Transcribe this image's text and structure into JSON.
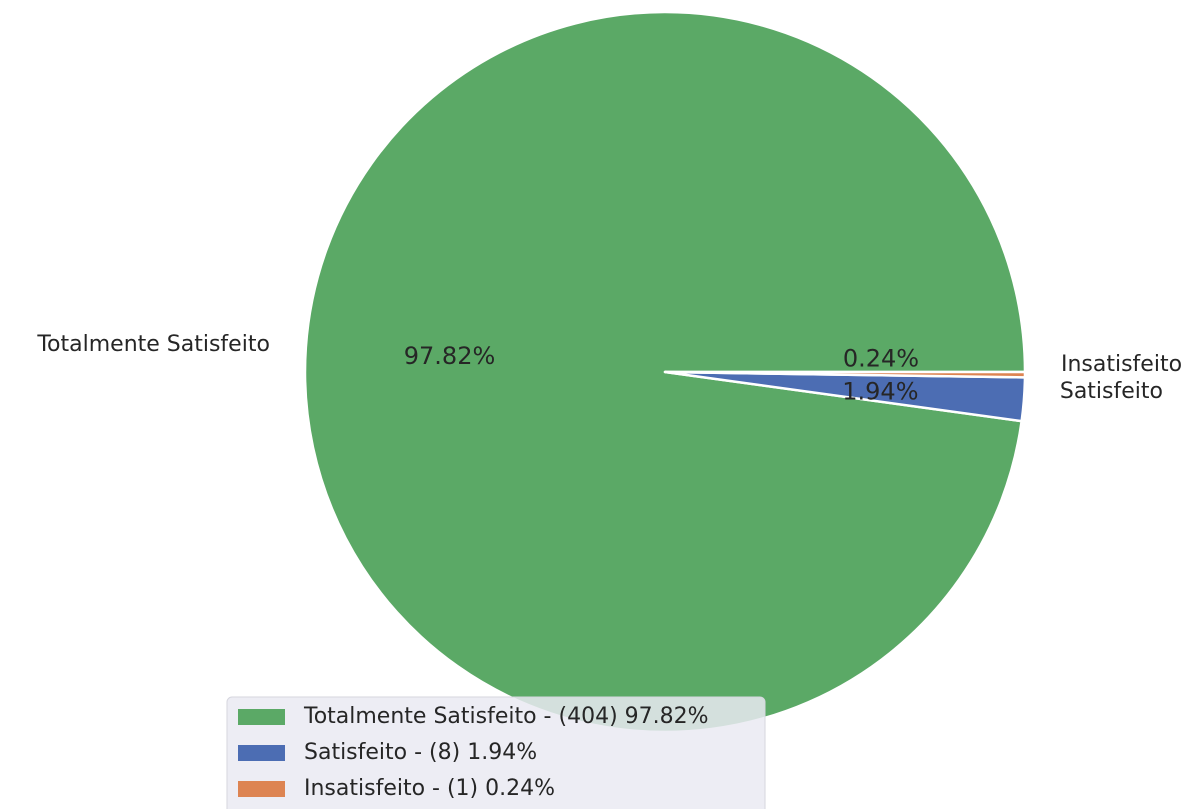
{
  "chart_data": {
    "type": "pie",
    "title": "",
    "slices": [
      {
        "label": "Totalmente Satisfeito",
        "count": 404,
        "percent": 97.82,
        "pct_label": "97.82%",
        "legend_label": "Totalmente Satisfeito - (404) 97.82%",
        "color": "#5ba966"
      },
      {
        "label": "Satisfeito",
        "count": 8,
        "percent": 1.94,
        "pct_label": "1.94%",
        "legend_label": "Satisfeito - (8) 1.94%",
        "color": "#4c6db3"
      },
      {
        "label": "Insatisfeito",
        "count": 1,
        "percent": 0.24,
        "pct_label": "0.24%",
        "legend_label": "Insatisfeito - (1) 0.24%",
        "color": "#dd8452"
      }
    ],
    "start_angle_deg": 0,
    "direction": "counterclockwise",
    "legend_placement": "bottom-left",
    "legend_background": "#eaeaf2"
  }
}
